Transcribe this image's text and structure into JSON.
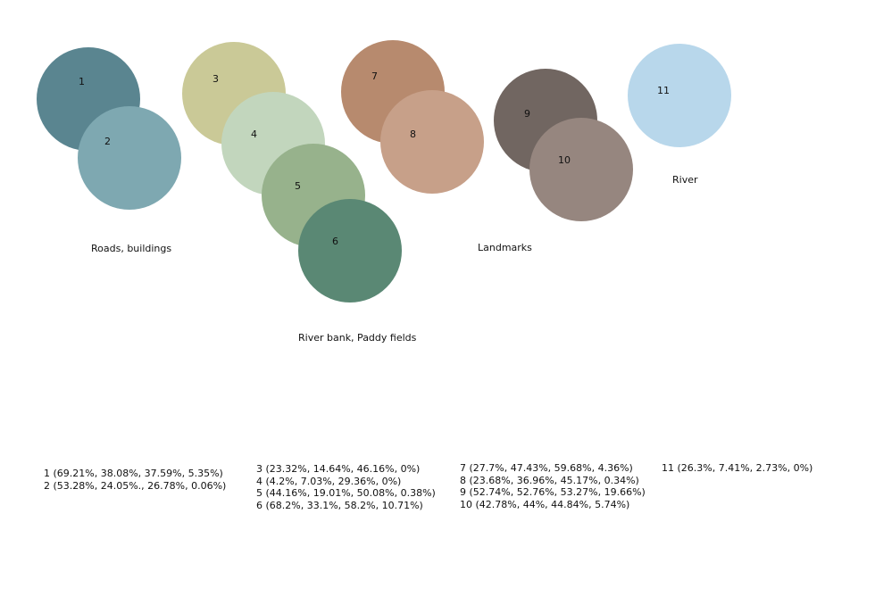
{
  "swatches": [
    {
      "number": "1",
      "color": "#5a8590"
    },
    {
      "number": "2",
      "color": "#7ea8b1"
    },
    {
      "number": "3",
      "color": "#cac997"
    },
    {
      "number": "4",
      "color": "#c2d6bd"
    },
    {
      "number": "5",
      "color": "#97b28c"
    },
    {
      "number": "6",
      "color": "#5a8874"
    },
    {
      "number": "7",
      "color": "#b78a6e"
    },
    {
      "number": "8",
      "color": "#c7a089"
    },
    {
      "number": "9",
      "color": "#716661"
    },
    {
      "number": "10",
      "color": "#96867f"
    },
    {
      "number": "11",
      "color": "#b8d7eb"
    }
  ],
  "groups": {
    "roads": "Roads, buildings",
    "riverbank": "River bank, Paddy fields",
    "landmarks": "Landmarks",
    "river": "River"
  },
  "legend": [
    [
      "1 (69.21%, 38.08%, 37.59%, 5.35%)",
      "2 (53.28%, 24.05%., 26.78%, 0.06%)"
    ],
    [
      "3 (23.32%, 14.64%, 46.16%, 0%)",
      "4 (4.2%, 7.03%, 29.36%, 0%)",
      "5 (44.16%, 19.01%, 50.08%, 0.38%)",
      "6 (68.2%, 33.1%, 58.2%, 10.71%)"
    ],
    [
      "7 (27.7%, 47.43%, 59.68%, 4.36%)",
      "8 (23.68%, 36.96%, 45.17%, 0.34%)",
      "9 (52.74%, 52.76%, 53.27%, 19.66%)",
      "10 (42.78%, 44%, 44.84%, 5.74%)"
    ],
    [
      "11 (26.3%, 7.41%, 2.73%, 0%)"
    ]
  ]
}
